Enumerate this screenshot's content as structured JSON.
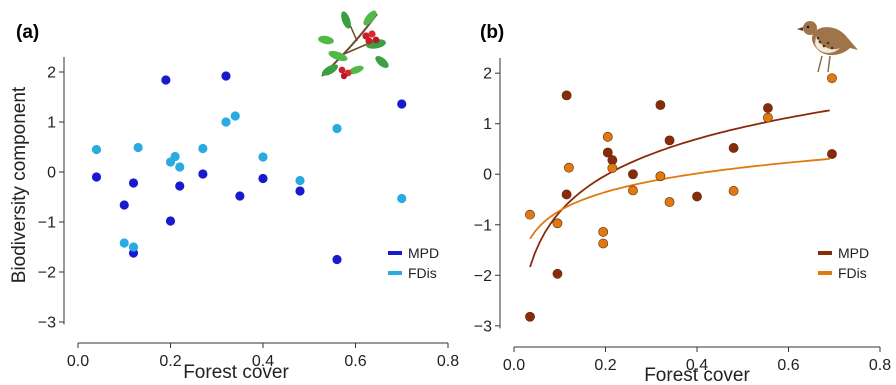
{
  "chart_data": [
    {
      "type": "scatter",
      "panel_label": "(a)",
      "xlabel": "Forest cover",
      "ylabel": "Biodiversity component",
      "xlim": [
        0,
        0.8
      ],
      "ylim": [
        -3.3,
        2.3
      ],
      "xticks": [
        "0.0",
        "0.2",
        "0.4",
        "0.6",
        "0.8"
      ],
      "yticks": [
        "2",
        "1",
        "0",
        "−1",
        "−2",
        "−3"
      ],
      "legend_position": "bottom-right",
      "icon": "hawthorn-branch-icon",
      "series": [
        {
          "name": "MPD",
          "color": "#1a1acc",
          "points": [
            [
              0.04,
              -0.1
            ],
            [
              0.1,
              -0.66
            ],
            [
              0.12,
              -0.22
            ],
            [
              0.12,
              -1.62
            ],
            [
              0.19,
              1.84
            ],
            [
              0.2,
              -0.98
            ],
            [
              0.22,
              -0.28
            ],
            [
              0.27,
              -0.04
            ],
            [
              0.32,
              1.92
            ],
            [
              0.35,
              -0.48
            ],
            [
              0.4,
              -0.13
            ],
            [
              0.48,
              -0.38
            ],
            [
              0.56,
              -1.75
            ],
            [
              0.7,
              1.36
            ]
          ]
        },
        {
          "name": "FDis",
          "color": "#29abe2",
          "points": [
            [
              0.04,
              0.45
            ],
            [
              0.1,
              -1.42
            ],
            [
              0.12,
              -1.5
            ],
            [
              0.13,
              0.49
            ],
            [
              0.2,
              0.2
            ],
            [
              0.21,
              0.31
            ],
            [
              0.22,
              0.1
            ],
            [
              0.27,
              0.47
            ],
            [
              0.32,
              1.0
            ],
            [
              0.34,
              1.12
            ],
            [
              0.4,
              0.3
            ],
            [
              0.48,
              -0.17
            ],
            [
              0.56,
              0.87
            ],
            [
              0.7,
              -0.53
            ]
          ]
        }
      ]
    },
    {
      "type": "scatter",
      "panel_label": "(b)",
      "xlabel": "Forest cover",
      "ylabel": "",
      "xlim": [
        0,
        0.8
      ],
      "ylim": [
        -3.3,
        2.3
      ],
      "xticks": [
        "0.0",
        "0.2",
        "0.4",
        "0.6",
        "0.8"
      ],
      "yticks": [
        "2",
        "1",
        "0",
        "−1",
        "−2",
        "−3"
      ],
      "legend_position": "bottom-right",
      "icon": "thrush-bird-icon",
      "series": [
        {
          "name": "MPD",
          "color": "#8b2a0a",
          "fit": {
            "form": "logarithmic",
            "a": 1.65,
            "b": 1.04,
            "range": [
              0.035,
              0.69
            ]
          },
          "points": [
            [
              0.035,
              -2.82
            ],
            [
              0.095,
              -1.97
            ],
            [
              0.115,
              1.56
            ],
            [
              0.115,
              -0.4
            ],
            [
              0.205,
              0.43
            ],
            [
              0.215,
              0.28
            ],
            [
              0.26,
              0.0
            ],
            [
              0.32,
              1.37
            ],
            [
              0.34,
              0.67
            ],
            [
              0.4,
              -0.44
            ],
            [
              0.48,
              0.52
            ],
            [
              0.555,
              1.31
            ],
            [
              0.695,
              0.4
            ]
          ]
        },
        {
          "name": "FDis",
          "color": "#e07a10",
          "fit": {
            "form": "logarithmic",
            "a": 0.5,
            "b": 0.53,
            "range": [
              0.035,
              0.69
            ]
          },
          "points": [
            [
              0.035,
              -0.8
            ],
            [
              0.095,
              -0.97
            ],
            [
              0.12,
              0.13
            ],
            [
              0.195,
              -1.14
            ],
            [
              0.195,
              -1.37
            ],
            [
              0.205,
              0.74
            ],
            [
              0.215,
              0.12
            ],
            [
              0.26,
              -0.32
            ],
            [
              0.32,
              -0.04
            ],
            [
              0.34,
              -0.55
            ],
            [
              0.48,
              -0.33
            ],
            [
              0.555,
              1.12
            ],
            [
              0.695,
              1.9
            ]
          ]
        }
      ]
    }
  ]
}
